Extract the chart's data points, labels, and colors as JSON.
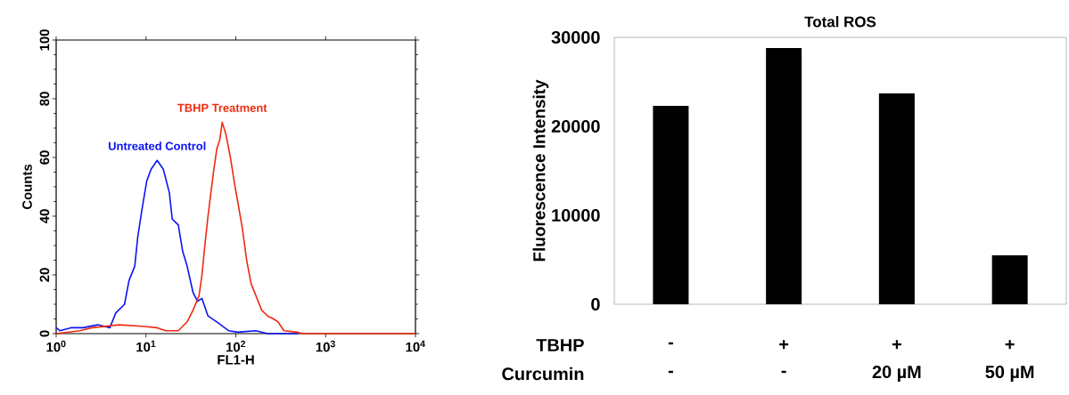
{
  "chart_data": [
    {
      "type": "line",
      "xlabel": "FL1-H",
      "ylabel": "Counts",
      "log": "x",
      "xlim": [
        1,
        10000
      ],
      "ylim": [
        0,
        100
      ],
      "xticks": [
        {
          "value": 1,
          "label": "10$^{0}$"
        },
        {
          "value": 10,
          "label": "10$^{1}$"
        },
        {
          "value": 100,
          "label": "10$^{2}$"
        },
        {
          "value": 1000,
          "label": "10$^{3}$"
        },
        {
          "value": 10000,
          "label": "10$^{4}$"
        }
      ],
      "yticks": [
        0,
        20,
        40,
        60,
        80,
        100
      ],
      "series": [
        {
          "name": "Untreated Control",
          "color": "#0a14f0",
          "x": [
            1,
            1.1,
            1.46,
            1.99,
            2.9,
            3.96,
            4.6,
            5.77,
            6.46,
            7.5,
            8.1,
            9.1,
            10.2,
            11.4,
            13.3,
            15.6,
            18.2,
            19.6,
            22.9,
            25.6,
            28.7,
            33.4,
            37.5,
            42,
            49,
            61.5,
            83,
            105,
            167,
            226,
            500
          ],
          "values": [
            2,
            1,
            2,
            2,
            3,
            2,
            7,
            10,
            18,
            23,
            33,
            43,
            52,
            56,
            59,
            56,
            48,
            39,
            37,
            28,
            23,
            14,
            11,
            12,
            6,
            4,
            1,
            0.5,
            1,
            0,
            0
          ]
        },
        {
          "name": "TBHP Treatment",
          "color": "#ee2a10",
          "x": [
            1,
            1.84,
            2.5,
            5,
            9.1,
            13.3,
            16.6,
            22.9,
            28.7,
            33.4,
            39,
            42,
            45.2,
            49,
            52.8,
            57,
            61.5,
            66.3,
            70.5,
            77.4,
            87,
            98,
            105,
            118,
            132,
            148,
            167,
            194,
            226,
            263,
            295,
            343,
            480,
            560,
            10000
          ],
          "values": [
            0,
            1,
            2,
            3,
            2.5,
            2,
            1,
            1,
            4,
            8,
            13,
            20,
            30,
            40,
            48,
            56,
            63,
            66,
            72,
            68,
            60,
            50,
            45,
            36,
            25,
            17,
            13,
            8,
            6,
            5,
            4,
            1,
            0.5,
            0,
            0
          ]
        }
      ]
    },
    {
      "type": "bar",
      "title": "Total ROS",
      "ylabel": "Fluorescence Intensity",
      "categories": [
        "-",
        "+",
        "+",
        "+"
      ],
      "values": [
        22300,
        28800,
        23700,
        5500
      ],
      "color": "#000000",
      "ylim": [
        0,
        30000
      ],
      "yticks": [
        0,
        10000,
        20000,
        30000
      ],
      "annotations": [
        "TBHP",
        "Curcumin",
        "-",
        "-",
        "20 µM",
        "50 µM"
      ]
    }
  ]
}
